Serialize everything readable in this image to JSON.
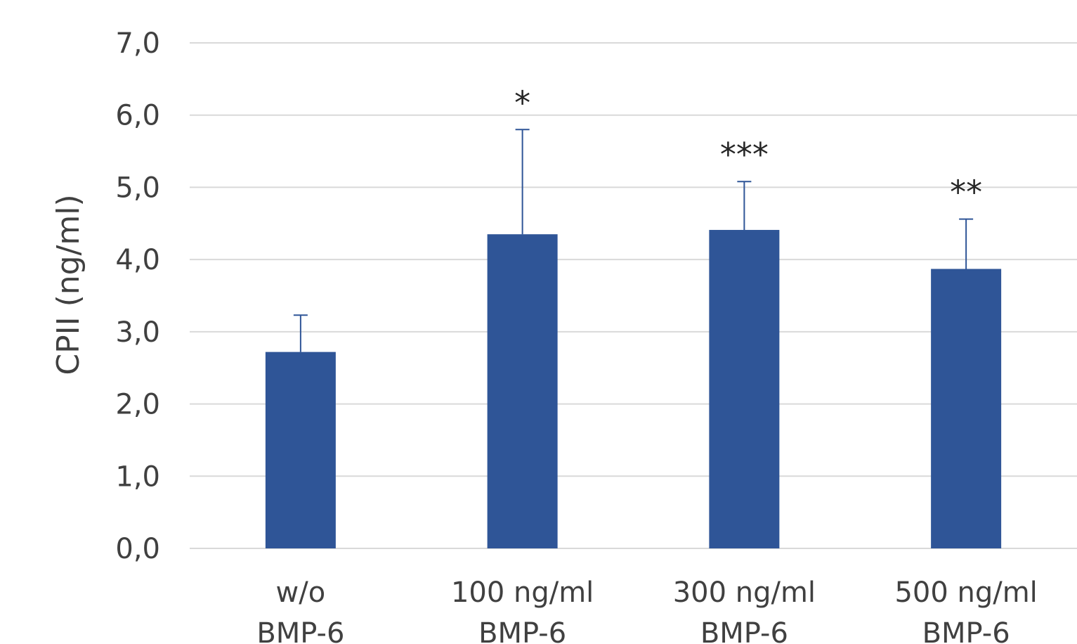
{
  "chart_data": {
    "type": "bar",
    "title": "",
    "xlabel": "",
    "ylabel": "CPII (ng/ml)",
    "ylim": [
      0,
      7
    ],
    "y_ticks": [
      "0,0",
      "1,0",
      "2,0",
      "3,0",
      "4,0",
      "5,0",
      "6,0",
      "7,0"
    ],
    "grid": true,
    "categories": [
      [
        "w/o",
        "BMP-6"
      ],
      [
        "100 ng/ml",
        "BMP-6"
      ],
      [
        "300 ng/ml",
        "BMP-6"
      ],
      [
        "500 ng/ml",
        "BMP-6"
      ]
    ],
    "values": [
      2.72,
      4.35,
      4.41,
      3.87
    ],
    "error_upper": [
      0.51,
      1.45,
      0.67,
      0.69
    ],
    "significance": [
      "",
      "*",
      "***",
      "**"
    ],
    "bar_color": "#2f5597",
    "gridline_color": "#d9d9d9"
  }
}
